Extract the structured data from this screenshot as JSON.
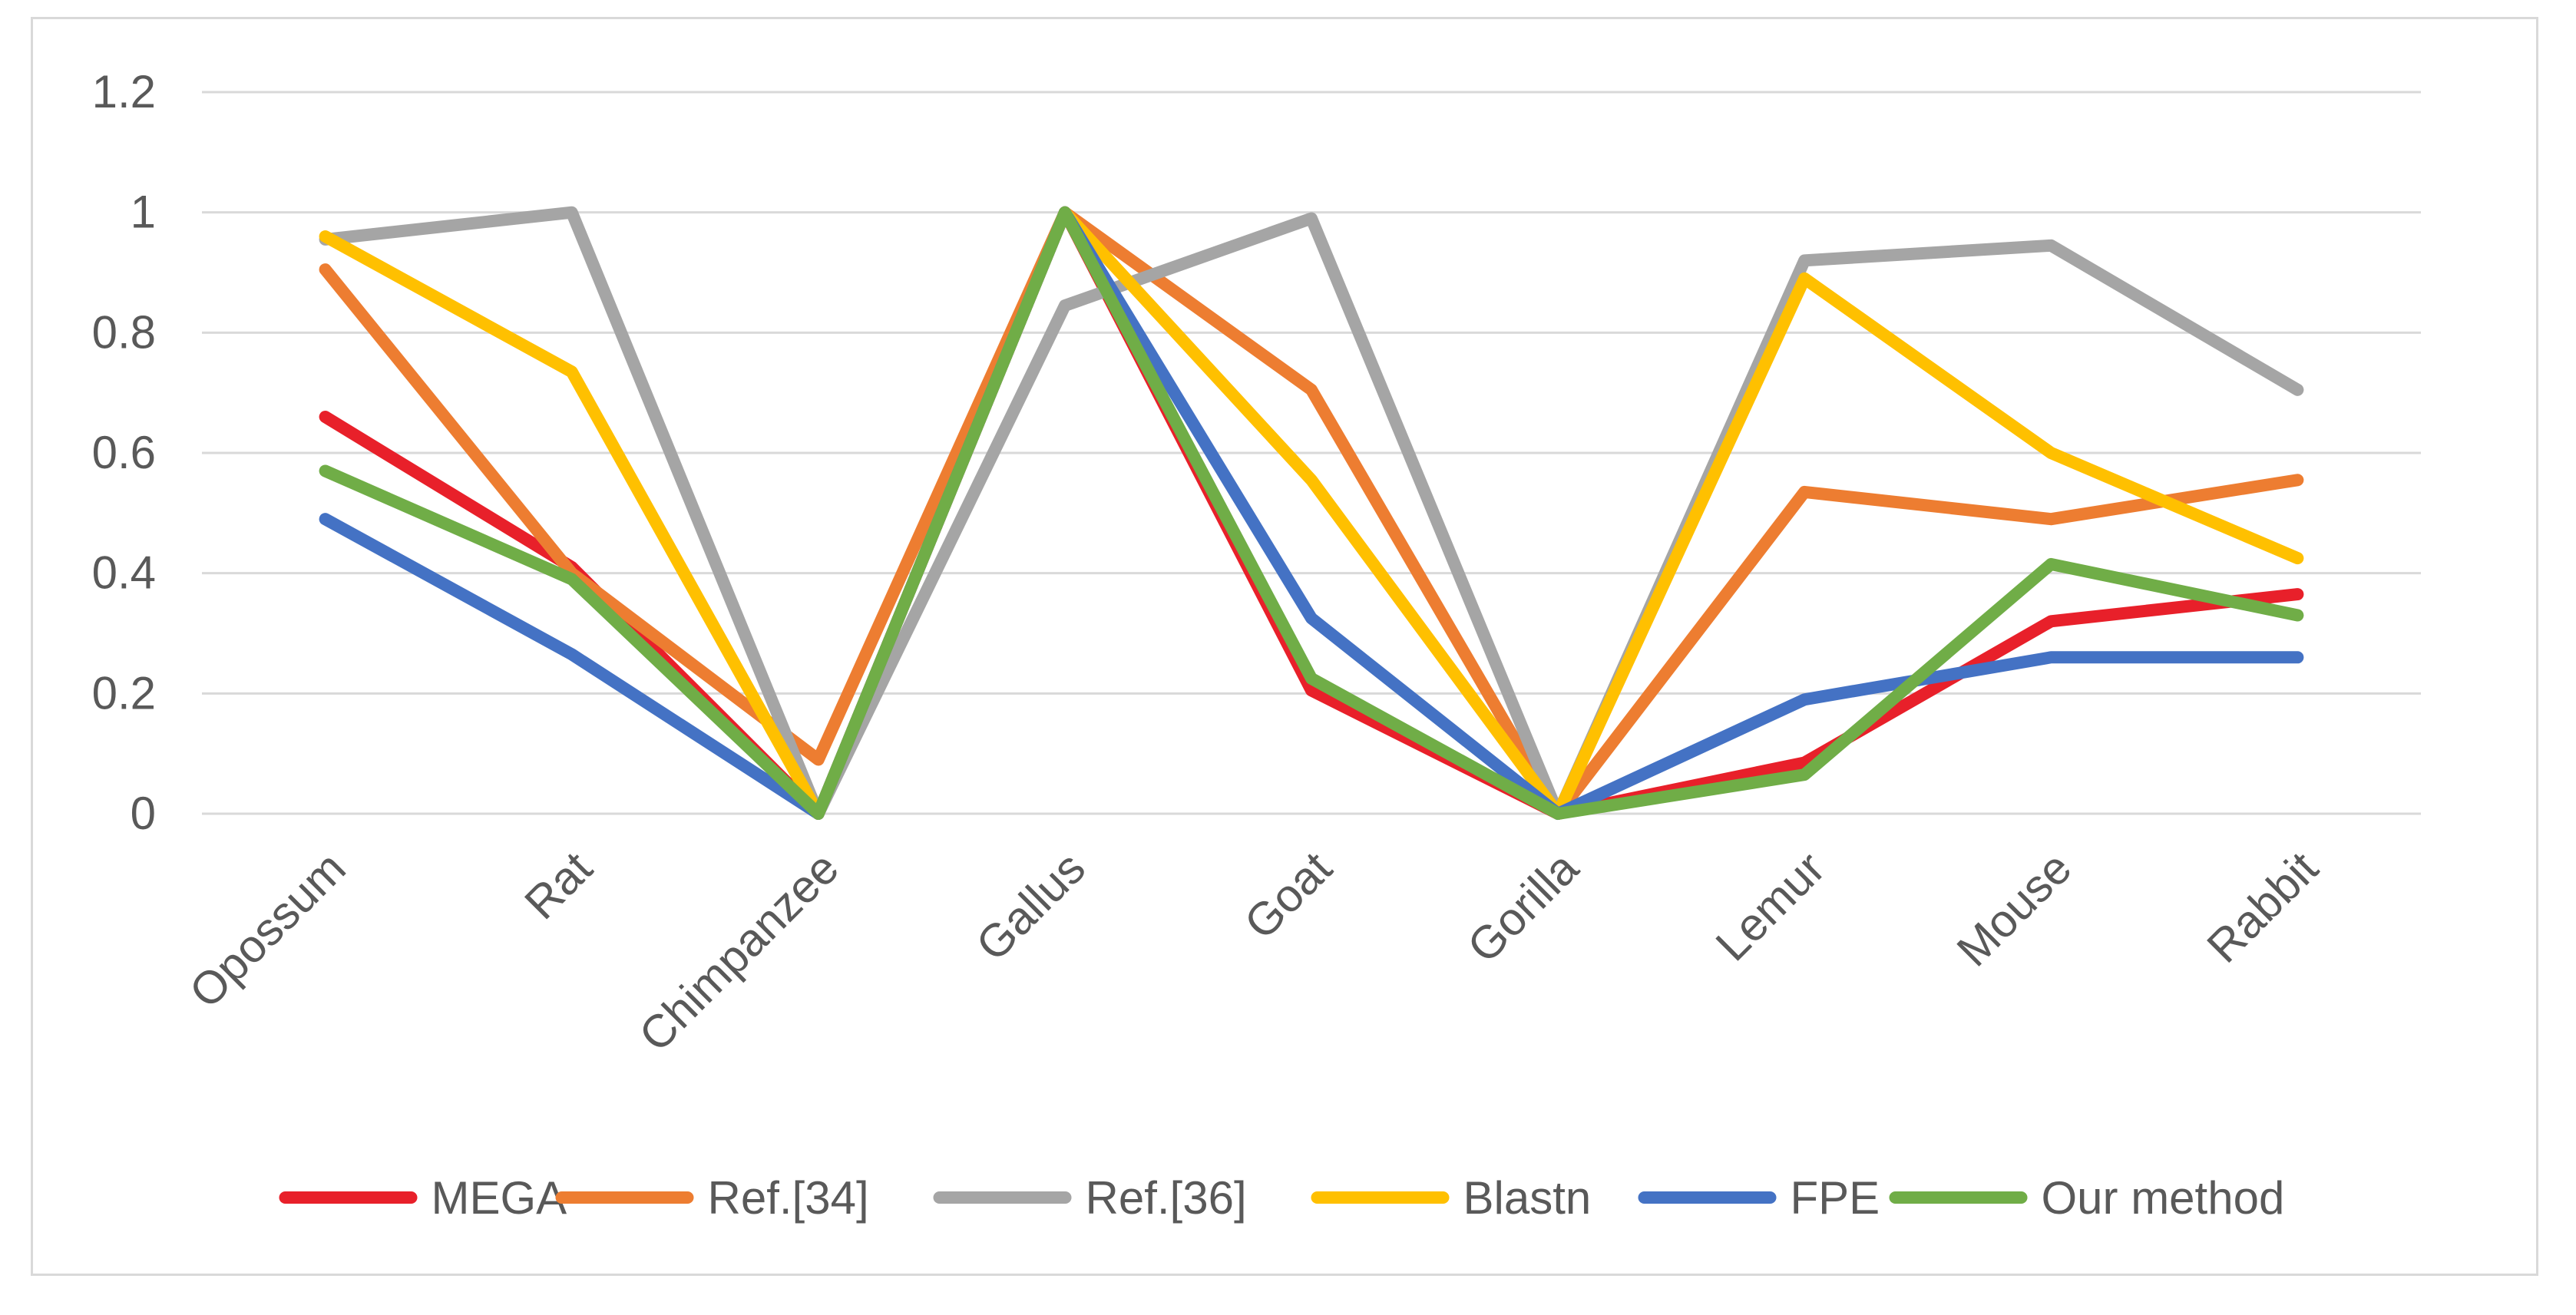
{
  "chart_data": {
    "type": "line",
    "title": "",
    "xlabel": "",
    "ylabel": "",
    "categories": [
      "Opossum",
      "Rat",
      "Chimpanzee",
      "Gallus",
      "Goat",
      "Gorilla",
      "Lemur",
      "Mouse",
      "Rabbit"
    ],
    "ylim": [
      0,
      1.2
    ],
    "yticks": [
      0,
      0.2,
      0.4,
      0.6,
      0.8,
      1,
      1.2
    ],
    "ytick_labels": [
      "0",
      "0.2",
      "0.4",
      "0.6",
      "0.8",
      "1",
      "1.2"
    ],
    "grid": true,
    "legend_position": "bottom",
    "series": [
      {
        "name": "MEGA",
        "color": "#e8202a",
        "values": [
          0.66,
          0.41,
          0.0,
          1.0,
          0.205,
          0.0,
          0.085,
          0.32,
          0.365
        ]
      },
      {
        "name": "Ref.[34]",
        "color": "#ed7d31",
        "values": [
          0.905,
          0.4,
          0.09,
          1.0,
          0.705,
          0.0,
          0.535,
          0.49,
          0.555
        ]
      },
      {
        "name": "Ref.[36]",
        "color": "#a5a5a5",
        "values": [
          0.955,
          1.0,
          0.0,
          0.845,
          0.99,
          0.0,
          0.92,
          0.945,
          0.705
        ]
      },
      {
        "name": "Blastn",
        "color": "#ffc000",
        "values": [
          0.96,
          0.735,
          0.0,
          1.0,
          0.555,
          0.0,
          0.89,
          0.6,
          0.425
        ]
      },
      {
        "name": "FPE",
        "color": "#4472c4",
        "values": [
          0.49,
          0.265,
          0.0,
          1.0,
          0.325,
          0.0,
          0.19,
          0.26,
          0.26
        ]
      },
      {
        "name": "Our method",
        "color": "#70ad47",
        "values": [
          0.57,
          0.39,
          0.0,
          1.0,
          0.225,
          0.0,
          0.065,
          0.415,
          0.33
        ]
      }
    ]
  }
}
